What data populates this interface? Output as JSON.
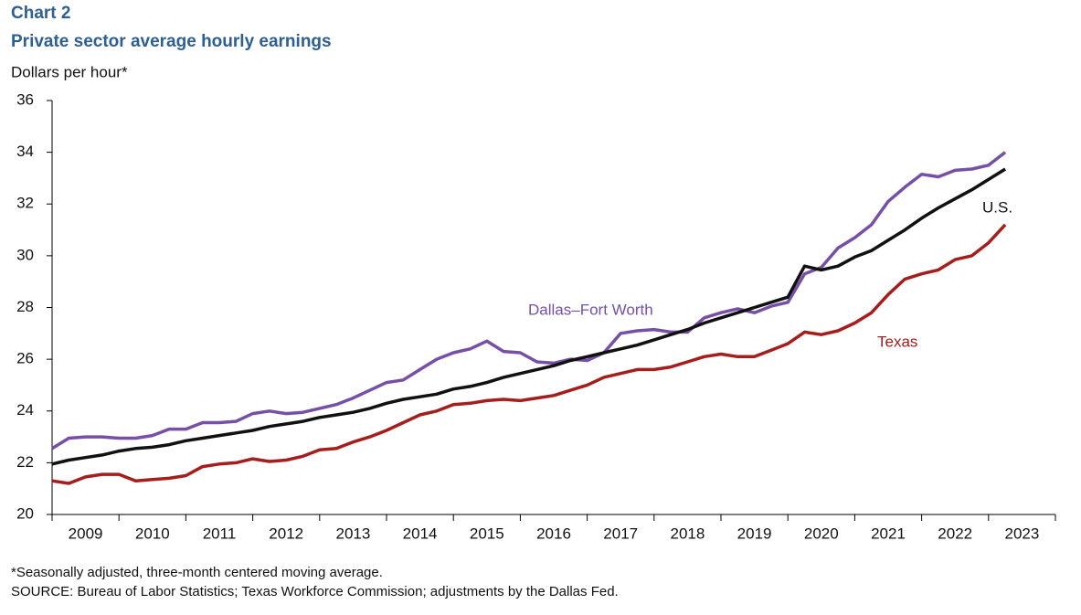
{
  "chart_data": {
    "type": "line",
    "title": "Chart 2",
    "subtitle": "Private sector average hourly earnings",
    "y_label": "Dollars per hour*",
    "notes": [
      "*Seasonally adjusted, three-month centered moving average.",
      "SOURCE: Bureau of Labor Statistics; Texas Workforce Commission; adjustments by the Dallas Fed."
    ],
    "x": [
      2009,
      2009.25,
      2009.5,
      2009.75,
      2010,
      2010.25,
      2010.5,
      2010.75,
      2011,
      2011.25,
      2011.5,
      2011.75,
      2012,
      2012.25,
      2012.5,
      2012.75,
      2013,
      2013.25,
      2013.5,
      2013.75,
      2014,
      2014.25,
      2014.5,
      2014.75,
      2015,
      2015.25,
      2015.5,
      2015.75,
      2016,
      2016.25,
      2016.5,
      2016.75,
      2017,
      2017.25,
      2017.5,
      2017.75,
      2018,
      2018.25,
      2018.5,
      2018.75,
      2019,
      2019.25,
      2019.5,
      2019.75,
      2020,
      2020.25,
      2020.5,
      2020.75,
      2021,
      2021.25,
      2021.5,
      2021.75,
      2022,
      2022.25,
      2022.5,
      2022.75,
      2023,
      2023.25
    ],
    "series": [
      {
        "name": "Dallas–Fort Worth",
        "color": "#7650a6",
        "values": [
          22.55,
          22.95,
          23.0,
          23.0,
          22.95,
          22.95,
          23.05,
          23.3,
          23.3,
          23.55,
          23.55,
          23.6,
          23.9,
          24.0,
          23.9,
          23.95,
          24.1,
          24.25,
          24.5,
          24.8,
          25.1,
          25.2,
          25.6,
          26.0,
          26.25,
          26.4,
          26.7,
          26.3,
          26.25,
          25.9,
          25.85,
          26.0,
          25.95,
          26.25,
          27.0,
          27.1,
          27.15,
          27.05,
          27.05,
          27.6,
          27.8,
          27.95,
          27.8,
          28.05,
          28.2,
          29.3,
          29.55,
          30.3,
          30.7,
          31.2,
          32.1,
          32.65,
          33.15,
          33.05,
          33.3,
          33.35,
          33.5,
          34.0
        ]
      },
      {
        "name": "U.S.",
        "color": "#111111",
        "values": [
          21.95,
          22.1,
          22.2,
          22.3,
          22.45,
          22.55,
          22.6,
          22.7,
          22.85,
          22.95,
          23.05,
          23.15,
          23.25,
          23.4,
          23.5,
          23.6,
          23.75,
          23.85,
          23.95,
          24.1,
          24.3,
          24.45,
          24.55,
          24.65,
          24.85,
          24.95,
          25.1,
          25.3,
          25.45,
          25.6,
          25.75,
          25.95,
          26.1,
          26.25,
          26.4,
          26.55,
          26.75,
          26.95,
          27.15,
          27.4,
          27.6,
          27.8,
          28.0,
          28.2,
          28.4,
          29.6,
          29.45,
          29.6,
          29.95,
          30.2,
          30.6,
          31.0,
          31.45,
          31.85,
          32.2,
          32.55,
          32.95,
          33.35
        ]
      },
      {
        "name": "Texas",
        "color": "#a51d1d",
        "values": [
          21.3,
          21.2,
          21.45,
          21.55,
          21.55,
          21.3,
          21.35,
          21.4,
          21.5,
          21.85,
          21.95,
          22.0,
          22.15,
          22.05,
          22.1,
          22.25,
          22.5,
          22.55,
          22.8,
          23.0,
          23.25,
          23.55,
          23.85,
          24.0,
          24.25,
          24.3,
          24.4,
          24.45,
          24.4,
          24.5,
          24.6,
          24.8,
          25.0,
          25.3,
          25.45,
          25.6,
          25.6,
          25.7,
          25.9,
          26.1,
          26.2,
          26.1,
          26.1,
          26.35,
          26.6,
          27.05,
          26.95,
          27.1,
          27.4,
          27.8,
          28.5,
          29.1,
          29.3,
          29.45,
          29.85,
          30.0,
          30.5,
          31.2
        ]
      }
    ],
    "xlim": [
      2009,
      2024
    ],
    "xticks": [
      {
        "value": 2009.5,
        "label": "2009"
      },
      {
        "value": 2010.5,
        "label": "2010"
      },
      {
        "value": 2011.5,
        "label": "2011"
      },
      {
        "value": 2012.5,
        "label": "2012"
      },
      {
        "value": 2013.5,
        "label": "2013"
      },
      {
        "value": 2014.5,
        "label": "2014"
      },
      {
        "value": 2015.5,
        "label": "2015"
      },
      {
        "value": 2016.5,
        "label": "2016"
      },
      {
        "value": 2017.5,
        "label": "2017"
      },
      {
        "value": 2018.5,
        "label": "2018"
      },
      {
        "value": 2019.5,
        "label": "2019"
      },
      {
        "value": 2020.5,
        "label": "2020"
      },
      {
        "value": 2021.5,
        "label": "2021"
      },
      {
        "value": 2022.5,
        "label": "2022"
      },
      {
        "value": 2023.5,
        "label": "2023"
      }
    ],
    "ylim": [
      20,
      36
    ],
    "yticks": [
      20,
      22,
      24,
      26,
      28,
      30,
      32,
      34,
      36
    ],
    "grid": false
  }
}
